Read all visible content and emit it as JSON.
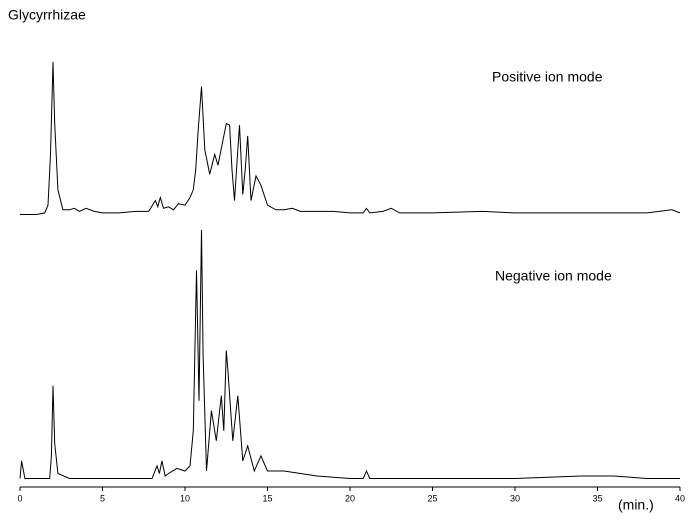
{
  "chart_data": [
    {
      "type": "line",
      "title": "Glycyrrhizae",
      "annotation": "Positive ion mode",
      "color": "#000000",
      "xlim": [
        0,
        40
      ],
      "ylim": [
        0,
        100
      ],
      "x": [
        0,
        0.5,
        1,
        1.5,
        1.7,
        1.85,
        2.0,
        2.1,
        2.3,
        2.6,
        3,
        3.3,
        3.6,
        4,
        4.5,
        5,
        6,
        7,
        7.8,
        8.2,
        8.35,
        8.5,
        8.7,
        9,
        9.3,
        9.6,
        10,
        10.3,
        10.5,
        10.65,
        10.8,
        11.0,
        11.2,
        11.35,
        11.5,
        11.8,
        12.0,
        12.3,
        12.5,
        12.7,
        12.85,
        13.0,
        13.15,
        13.3,
        13.5,
        13.65,
        13.8,
        14.0,
        14.3,
        14.6,
        15.0,
        15.5,
        16,
        16.5,
        17,
        18,
        19,
        20,
        20.8,
        21,
        21.2,
        22,
        22.5,
        23,
        25,
        28,
        30,
        33,
        35,
        38,
        39.5,
        40
      ],
      "values": [
        1,
        1,
        1,
        2,
        7,
        40,
        100,
        60,
        17,
        4,
        4,
        5,
        3,
        5,
        3,
        2,
        2,
        3,
        3,
        10,
        6,
        12,
        5,
        6,
        4,
        8,
        7,
        12,
        17,
        30,
        56,
        84,
        43,
        35,
        27,
        40,
        33,
        49,
        60,
        59,
        30,
        10,
        35,
        59,
        14,
        30,
        52,
        10,
        26,
        20,
        7,
        4,
        4,
        5,
        3,
        3,
        3,
        2,
        2,
        5,
        2,
        3,
        5,
        2,
        2,
        3,
        2,
        2,
        2,
        2,
        4,
        2
      ]
    },
    {
      "type": "line",
      "annotation": "Negative ion mode",
      "color": "#000000",
      "xlim": [
        0,
        40
      ],
      "ylim": [
        0,
        100
      ],
      "xticks": [
        0,
        5,
        10,
        15,
        20,
        25,
        30,
        35,
        40
      ],
      "xlabel": "(min.)",
      "x": [
        0,
        0.1,
        0.3,
        1,
        1.8,
        1.9,
        2.0,
        2.1,
        2.3,
        3,
        5,
        7,
        8,
        8.3,
        8.45,
        8.6,
        8.8,
        9,
        9.5,
        10,
        10.3,
        10.5,
        10.7,
        10.85,
        11.0,
        11.1,
        11.3,
        11.6,
        11.9,
        12.2,
        12.35,
        12.5,
        12.6,
        12.9,
        13.2,
        13.5,
        13.8,
        14.2,
        14.6,
        15,
        16,
        17,
        18,
        20,
        20.8,
        21,
        21.2,
        23,
        26,
        30,
        34,
        35,
        36,
        38,
        40
      ],
      "values": [
        1,
        8,
        1,
        1,
        1,
        10,
        38,
        15,
        3,
        1,
        1,
        1,
        1,
        6,
        3,
        8,
        2,
        3,
        5,
        4,
        6,
        20,
        84,
        32,
        100,
        50,
        4,
        28,
        16,
        34,
        20,
        52,
        44,
        16,
        34,
        8,
        14,
        4,
        10,
        4,
        4,
        3,
        2,
        1,
        1,
        4,
        1,
        1,
        1,
        1,
        2,
        2,
        2,
        1,
        1
      ]
    }
  ]
}
